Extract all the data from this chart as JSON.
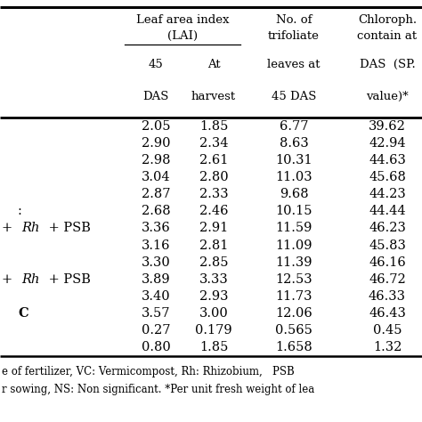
{
  "col1": [
    "2.05",
    "2.90",
    "2.98",
    "3.04",
    "2.87",
    "2.68",
    "3.36",
    "3.16",
    "3.30",
    "3.89",
    "3.40",
    "3.57",
    "0.27",
    "0.80"
  ],
  "col2": [
    "1.85",
    "2.34",
    "2.61",
    "2.80",
    "2.33",
    "2.46",
    "2.91",
    "2.81",
    "2.85",
    "3.33",
    "2.93",
    "3.00",
    "0.179",
    "1.85"
  ],
  "col3": [
    "6.77",
    "8.63",
    "10.31",
    "11.03",
    "9.68",
    "10.15",
    "11.59",
    "11.09",
    "11.39",
    "12.53",
    "11.73",
    "12.06",
    "0.565",
    "1.658"
  ],
  "col4": [
    "39.62",
    "42.94",
    "44.63",
    "45.68",
    "44.23",
    "44.44",
    "46.23",
    "45.83",
    "46.16",
    "46.72",
    "46.33",
    "46.43",
    "0.45",
    "1.32"
  ],
  "row_labels_visible": [
    "",
    "",
    "",
    "",
    "",
    ":",
    "+ Rh + PSB",
    "",
    "",
    "+ Rh + PSB",
    "",
    "C",
    "",
    ""
  ],
  "row_label_special": [
    false,
    false,
    false,
    false,
    false,
    false,
    true,
    false,
    false,
    true,
    false,
    false,
    false,
    false
  ],
  "footnote1": "e of fertilizer, VC: Vermicompost, Rh: Rhizobium,   PSB",
  "footnote2": "r sowing, NS: Non significant. *Per unit fresh weight of lea",
  "header_lai": "Leaf area index",
  "header_lai2": "(LAI)",
  "header_45das": "45",
  "header_das": "DAS",
  "header_at": "At",
  "header_harvest": "harvest",
  "header_noof": "No. of",
  "header_trifoliate": "trifoliate",
  "header_leaves": "leaves at",
  "header_45das2": "45 DAS",
  "header_chlor": "Chloroph.",
  "header_contain": "contain at",
  "header_das_sp": "DAS  (SP.",
  "header_value": "value)*",
  "bg_color": "#ffffff",
  "line_color": "#000000",
  "text_color": "#000000",
  "fontsize_header": 9.5,
  "fontsize_data": 10.5,
  "fontsize_footnote": 8.5
}
